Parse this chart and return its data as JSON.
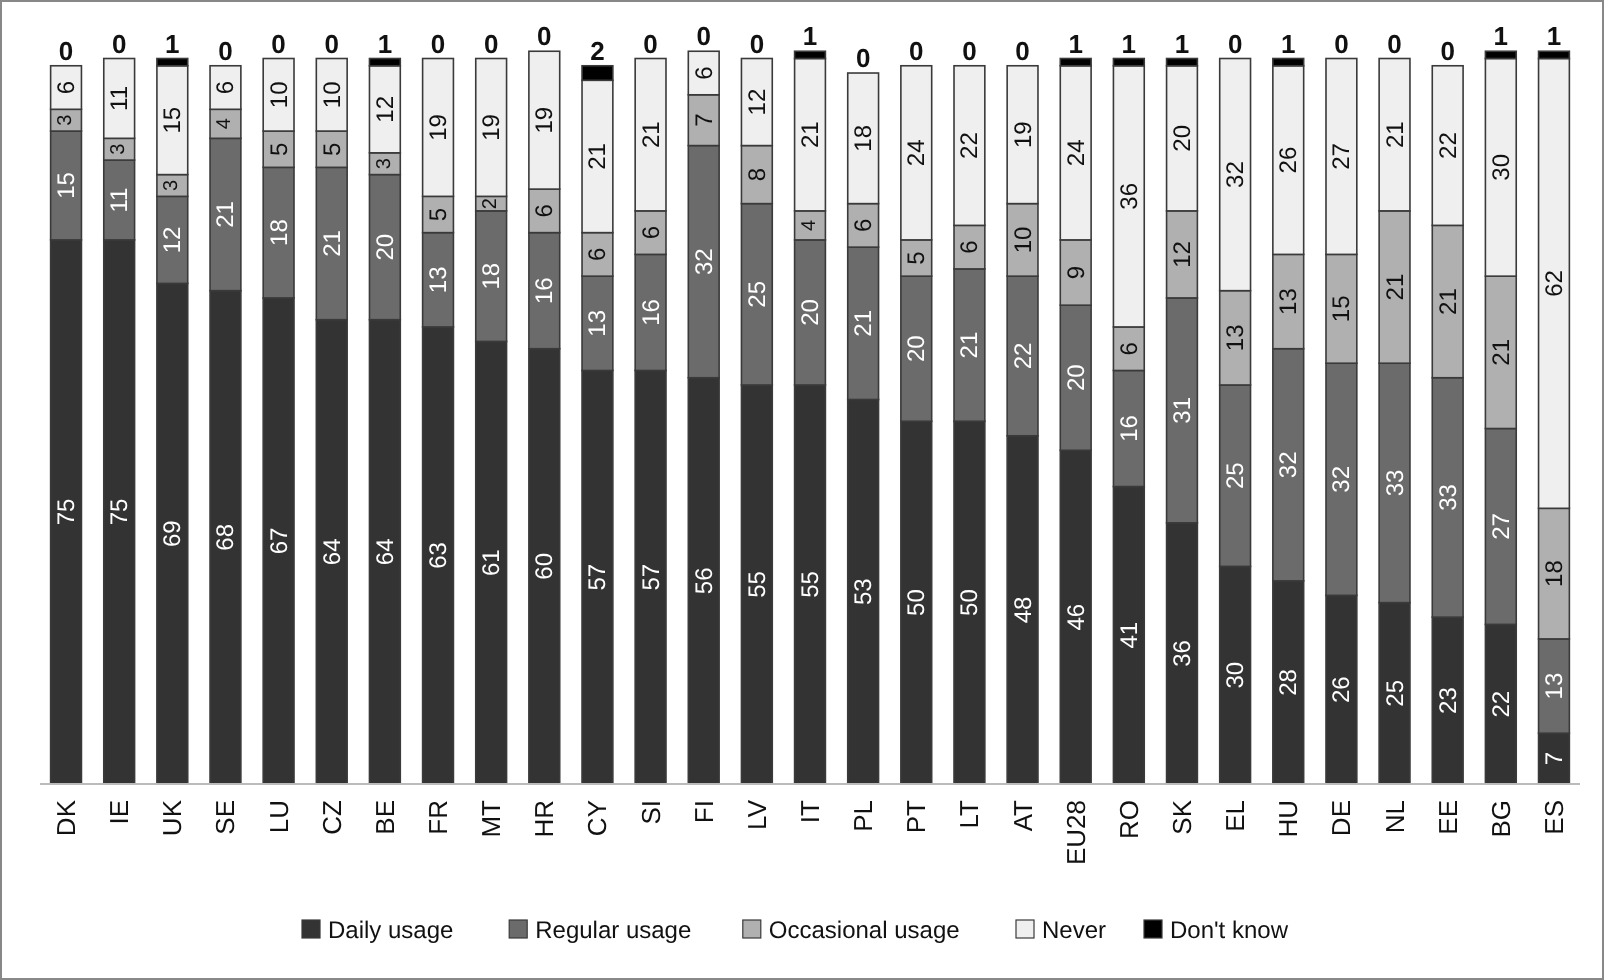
{
  "chart_data": {
    "type": "bar",
    "stacked": true,
    "data_labels": true,
    "legend": "bottom",
    "tick_labels": "x",
    "ylim": [
      0,
      102
    ],
    "categories": [
      "DK",
      "IE",
      "UK",
      "SE",
      "LU",
      "CZ",
      "BE",
      "FR",
      "MT",
      "HR",
      "CY",
      "SI",
      "FI",
      "LV",
      "IT",
      "PL",
      "PT",
      "LT",
      "AT",
      "EU28",
      "RO",
      "SK",
      "EL",
      "HU",
      "DE",
      "NL",
      "EE",
      "BG",
      "ES"
    ],
    "series": [
      {
        "name": "Daily usage",
        "color": "#333333",
        "values": [
          75,
          75,
          69,
          68,
          67,
          64,
          64,
          63,
          61,
          60,
          57,
          57,
          56,
          55,
          55,
          53,
          50,
          50,
          48,
          46,
          41,
          36,
          30,
          28,
          26,
          25,
          23,
          22,
          7
        ]
      },
      {
        "name": "Regular usage",
        "color": "#6b6b6b",
        "values": [
          15,
          11,
          12,
          21,
          18,
          21,
          20,
          13,
          18,
          16,
          13,
          16,
          32,
          25,
          20,
          21,
          20,
          21,
          22,
          20,
          16,
          31,
          25,
          32,
          32,
          33,
          33,
          27,
          13
        ]
      },
      {
        "name": "Occasional usage",
        "color": "#b0b0b0",
        "values": [
          3,
          3,
          3,
          4,
          5,
          5,
          3,
          5,
          2,
          6,
          6,
          6,
          7,
          8,
          4,
          6,
          5,
          6,
          10,
          9,
          6,
          12,
          13,
          13,
          15,
          21,
          21,
          21,
          18
        ]
      },
      {
        "name": "Never",
        "color": "#efefef",
        "values": [
          6,
          11,
          15,
          6,
          10,
          10,
          12,
          19,
          19,
          19,
          21,
          21,
          6,
          12,
          21,
          18,
          24,
          22,
          19,
          24,
          36,
          20,
          32,
          26,
          27,
          21,
          22,
          30,
          62
        ]
      },
      {
        "name": "Don't know",
        "color": "#000000",
        "values": [
          0,
          0,
          1,
          0,
          0,
          0,
          1,
          0,
          0,
          0,
          2,
          0,
          0,
          0,
          1,
          0,
          0,
          0,
          0,
          1,
          1,
          1,
          0,
          1,
          0,
          0,
          0,
          1,
          1
        ]
      }
    ]
  }
}
